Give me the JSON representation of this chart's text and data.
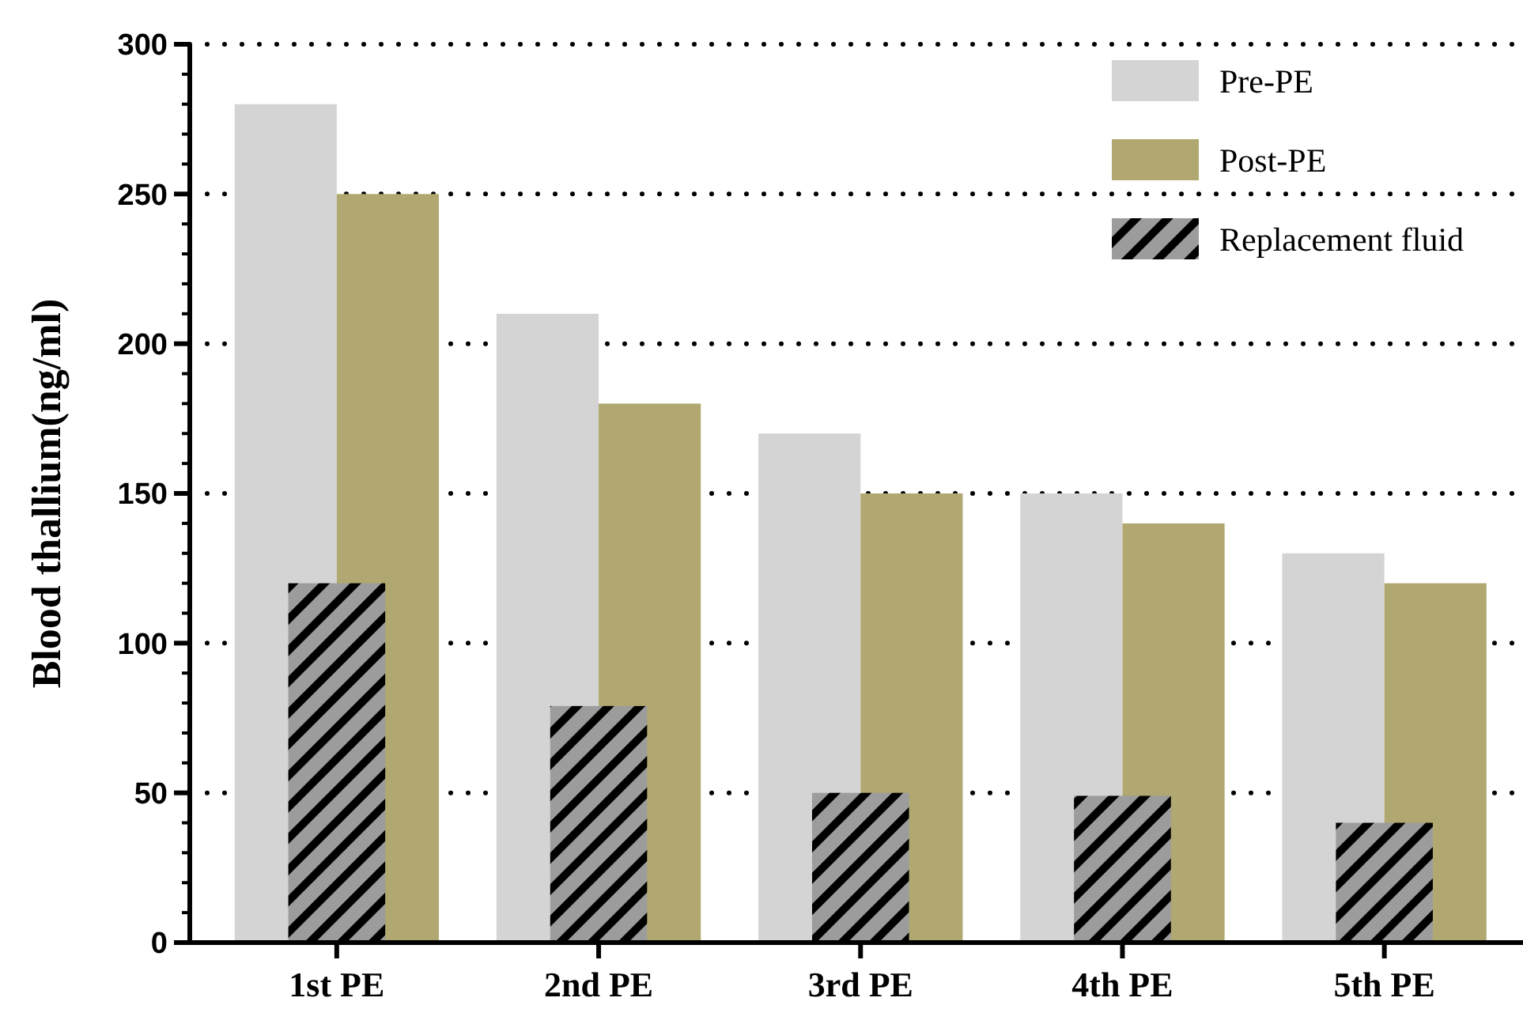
{
  "chart_data": {
    "type": "bar",
    "ylabel": "Blood thallium(ng/ml)",
    "categories": [
      "1st PE",
      "2nd PE",
      "3rd PE",
      "4th PE",
      "5th PE"
    ],
    "series": [
      {
        "name": "Pre-PE",
        "color": "#d4d4d4",
        "values": [
          280,
          210,
          170,
          150,
          130
        ]
      },
      {
        "name": "Post-PE",
        "color": "#b0a870",
        "values": [
          250,
          180,
          150,
          140,
          120
        ]
      },
      {
        "name": "Replacement fluid",
        "color": "#9c9c9c",
        "values": [
          120,
          79,
          50,
          49,
          40
        ]
      }
    ],
    "ylim": [
      0,
      300
    ],
    "yticks": [
      0,
      50,
      100,
      150,
      200,
      250,
      300
    ],
    "grid": "y",
    "legend": "top right"
  }
}
